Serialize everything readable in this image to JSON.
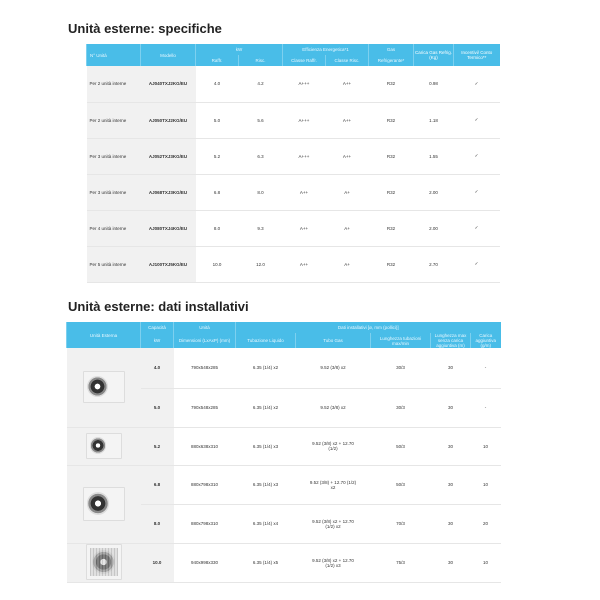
{
  "spec": {
    "title": "Unità esterne: specifiche",
    "headers": {
      "unita": "N° Unità",
      "modello": "Modello",
      "kw": "kW",
      "raff": "Raffr.",
      "risc": "Risc.",
      "efficienza": "Efficienza Energetica*1",
      "classe_raff": "Classe Raffr.",
      "classe_risc": "Classe Risc.",
      "gas": "Gas",
      "refrigerante": "Refrigerante*",
      "carica": "Carica Gas Refrig. (Kg)",
      "incentivi": "Incentivi/ Conto Termico**"
    },
    "rows": [
      {
        "unita": "Per 2 unità interne",
        "modello": "AJ040TXJ2KG/EU",
        "raff": "4.0",
        "risc": "4.2",
        "classe_raff": "A+++",
        "classe_risc": "A++",
        "gas": "R32",
        "carica": "0.98",
        "incentivi": "✓"
      },
      {
        "unita": "Per 2 unità interne",
        "modello": "AJ050TXJ2KG/EU",
        "raff": "5.0",
        "risc": "5.6",
        "classe_raff": "A+++",
        "classe_risc": "A++",
        "gas": "R32",
        "carica": "1.18",
        "incentivi": "✓"
      },
      {
        "unita": "Per 3 unità interne",
        "modello": "AJ052TXJ3KG/EU",
        "raff": "5.2",
        "risc": "6.3",
        "classe_raff": "A+++",
        "classe_risc": "A++",
        "gas": "R32",
        "carica": "1.55",
        "incentivi": "✓"
      },
      {
        "unita": "Per 3 unità interne",
        "modello": "AJ068TXJ3KG/EU",
        "raff": "6.8",
        "risc": "8.0",
        "classe_raff": "A++",
        "classe_risc": "A+",
        "gas": "R32",
        "carica": "2.00",
        "incentivi": "✓"
      },
      {
        "unita": "Per 4 unità interne",
        "modello": "AJ080TXJ4KG/EU",
        "raff": "8.0",
        "risc": "9.3",
        "classe_raff": "A++",
        "classe_risc": "A+",
        "gas": "R32",
        "carica": "2.00",
        "incentivi": "✓"
      },
      {
        "unita": "Per 5 unità interne",
        "modello": "AJ100TXJ5KG/EU",
        "raff": "10.0",
        "risc": "12.0",
        "classe_raff": "A++",
        "classe_risc": "A+",
        "gas": "R32",
        "carica": "2.70",
        "incentivi": "✓"
      }
    ]
  },
  "install": {
    "title": "Unità esterne: dati installativi",
    "headers": {
      "unita_esterna": "Unità Esterna",
      "capacita": "Capacità",
      "kw": "kW",
      "unita": "Unità",
      "dimensioni": "Dimensioni (LxAxP) (mm)",
      "dati": "Dati installativi [ø, mm (pollici)]",
      "liquido": "Tubazione Liquido",
      "gas": "Tubo Gas",
      "lunghezza": "Lunghezza tubazioni max/min",
      "lunghezza_max": "Lunghezza max senza carica aggiuntiva (m)",
      "carica": "Carica aggiuntiva (g/m)"
    },
    "rows": [
      {
        "kw": "4.0",
        "dim": "790x548x285",
        "liquido": "6.35 (1/4) x2",
        "gas": "9.52 (3/8) x2",
        "lung": "30/3",
        "lung_max": "30",
        "carica": "-"
      },
      {
        "kw": "5.0",
        "dim": "790x548x285",
        "liquido": "6.35 (1/4) x2",
        "gas": "9.52 (3/8) x2",
        "lung": "30/3",
        "lung_max": "30",
        "carica": "-"
      },
      {
        "kw": "5.2",
        "dim": "880x638x310",
        "liquido": "6.35 (1/4) x3",
        "gas": "9.52 (3/8) x2 + 12.70 (1/2)",
        "lung": "50/3",
        "lung_max": "30",
        "carica": "10"
      },
      {
        "kw": "6.8",
        "dim": "880x798x310",
        "liquido": "6.35 (1/4) x3",
        "gas": "9.52 (3/8) + 12.70 (1/2) x2",
        "lung": "50/3",
        "lung_max": "30",
        "carica": "10"
      },
      {
        "kw": "8.0",
        "dim": "880x798x310",
        "liquido": "6.35 (1/4) x4",
        "gas": "9.52 (3/8) x2 + 12.70 (1/2) x2",
        "lung": "70/3",
        "lung_max": "30",
        "carica": "20"
      },
      {
        "kw": "10.0",
        "dim": "940x998x330",
        "liquido": "6.35 (1/4) x5",
        "gas": "9.52 (3/8) x2 + 12.70 (1/2) x3",
        "lung": "75/3",
        "lung_max": "30",
        "carica": "10"
      }
    ]
  },
  "colors": {
    "header": "#49bde8",
    "first_cols": "#f1f1f1"
  }
}
